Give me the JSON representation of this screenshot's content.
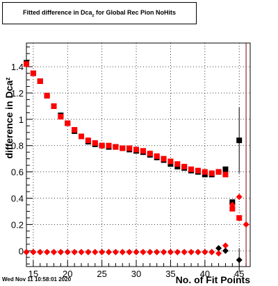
{
  "chart_data": {
    "type": "scatter",
    "title": "Fitted difference in Dca",
    "title_sub": "z",
    "title_rest": " for Global Rec Pion NoHits",
    "ylabel": "difference in Dca",
    "ylabel_sub": "z",
    "xlabel": "No. of Fit Points",
    "xlim": [
      14,
      46.6
    ],
    "ylim": [
      -0.12,
      1.58
    ],
    "x_ticks": [
      15,
      20,
      25,
      30,
      35,
      40,
      45
    ],
    "y_ticks": [
      0,
      0.2,
      0.4,
      0.6,
      0.8,
      1,
      1.2,
      1.4
    ],
    "y_tick_labels": [
      "0",
      "0.2",
      "0.4",
      "0.6",
      "0.8",
      "1",
      "1.2",
      "1.4"
    ],
    "grid": true,
    "colors": {
      "series_a": "#000000",
      "series_b": "#ff0000",
      "frame": "#000000",
      "vline": "#800000"
    },
    "series": [
      {
        "marker": "square",
        "color": "#000000",
        "points": [
          [
            14,
            1.43
          ],
          [
            15,
            1.35
          ],
          [
            16,
            1.29
          ],
          [
            17,
            1.18
          ],
          [
            18,
            1.1
          ],
          [
            19,
            1.03
          ],
          [
            20,
            0.97
          ],
          [
            21,
            0.91
          ],
          [
            22,
            0.87
          ],
          [
            23,
            0.83
          ],
          [
            24,
            0.81
          ],
          [
            25,
            0.8
          ],
          [
            26,
            0.79
          ],
          [
            27,
            0.79
          ],
          [
            28,
            0.78
          ],
          [
            29,
            0.77
          ],
          [
            30,
            0.76
          ],
          [
            31,
            0.75
          ],
          [
            32,
            0.73
          ],
          [
            33,
            0.71
          ],
          [
            34,
            0.69
          ],
          [
            35,
            0.66
          ],
          [
            36,
            0.64
          ],
          [
            37,
            0.63
          ],
          [
            38,
            0.61
          ],
          [
            39,
            0.6
          ],
          [
            40,
            0.58
          ],
          [
            41,
            0.58
          ],
          [
            42,
            0.6
          ],
          [
            43,
            0.62
          ],
          [
            44,
            0.37
          ],
          [
            45,
            0.84
          ]
        ],
        "errors": [
          [
            45,
            0.25
          ]
        ]
      },
      {
        "marker": "square",
        "color": "#ff0000",
        "points": [
          [
            14,
            1.42
          ],
          [
            15,
            1.35
          ],
          [
            16,
            1.29
          ],
          [
            17,
            1.18
          ],
          [
            18,
            1.1
          ],
          [
            19,
            1.02
          ],
          [
            20,
            0.97
          ],
          [
            21,
            0.92
          ],
          [
            22,
            0.87
          ],
          [
            23,
            0.84
          ],
          [
            24,
            0.82
          ],
          [
            25,
            0.8
          ],
          [
            26,
            0.8
          ],
          [
            27,
            0.79
          ],
          [
            28,
            0.78
          ],
          [
            29,
            0.78
          ],
          [
            30,
            0.77
          ],
          [
            31,
            0.76
          ],
          [
            32,
            0.74
          ],
          [
            33,
            0.72
          ],
          [
            34,
            0.7
          ],
          [
            35,
            0.68
          ],
          [
            36,
            0.66
          ],
          [
            37,
            0.64
          ],
          [
            38,
            0.62
          ],
          [
            39,
            0.61
          ],
          [
            40,
            0.6
          ],
          [
            41,
            0.59
          ],
          [
            42,
            0.6
          ],
          [
            43,
            0.58
          ],
          [
            44,
            0.32
          ],
          [
            45,
            0.25
          ]
        ],
        "errors": []
      },
      {
        "marker": "diamond",
        "color": "#000000",
        "points": [
          [
            14,
            -0.01
          ],
          [
            15,
            -0.01
          ],
          [
            16,
            -0.01
          ],
          [
            17,
            -0.01
          ],
          [
            18,
            -0.01
          ],
          [
            19,
            -0.01
          ],
          [
            20,
            -0.01
          ],
          [
            21,
            -0.01
          ],
          [
            22,
            -0.01
          ],
          [
            23,
            -0.01
          ],
          [
            24,
            -0.01
          ],
          [
            25,
            -0.01
          ],
          [
            26,
            -0.01
          ],
          [
            27,
            -0.01
          ],
          [
            28,
            -0.01
          ],
          [
            29,
            -0.01
          ],
          [
            30,
            -0.01
          ],
          [
            31,
            -0.01
          ],
          [
            32,
            -0.01
          ],
          [
            33,
            -0.01
          ],
          [
            34,
            -0.01
          ],
          [
            35,
            -0.01
          ],
          [
            36,
            -0.01
          ],
          [
            37,
            -0.01
          ],
          [
            38,
            -0.01
          ],
          [
            39,
            -0.01
          ],
          [
            40,
            -0.01
          ],
          [
            41,
            -0.01
          ],
          [
            42,
            0.02
          ],
          [
            43,
            0.0
          ],
          [
            44,
            0.36
          ],
          [
            45,
            -0.07
          ]
        ],
        "errors": [
          [
            45,
            0.09
          ]
        ]
      },
      {
        "marker": "diamond",
        "color": "#ff0000",
        "points": [
          [
            14,
            -0.01
          ],
          [
            15,
            -0.01
          ],
          [
            16,
            -0.01
          ],
          [
            17,
            -0.01
          ],
          [
            18,
            -0.01
          ],
          [
            19,
            -0.01
          ],
          [
            20,
            -0.01
          ],
          [
            21,
            -0.01
          ],
          [
            22,
            -0.01
          ],
          [
            23,
            -0.01
          ],
          [
            24,
            -0.01
          ],
          [
            25,
            -0.01
          ],
          [
            26,
            -0.01
          ],
          [
            27,
            -0.01
          ],
          [
            28,
            -0.01
          ],
          [
            29,
            -0.01
          ],
          [
            30,
            -0.01
          ],
          [
            31,
            -0.01
          ],
          [
            32,
            -0.01
          ],
          [
            33,
            -0.01
          ],
          [
            34,
            -0.01
          ],
          [
            35,
            -0.01
          ],
          [
            36,
            -0.01
          ],
          [
            37,
            -0.01
          ],
          [
            38,
            -0.01
          ],
          [
            39,
            -0.01
          ],
          [
            40,
            -0.01
          ],
          [
            41,
            -0.01
          ],
          [
            42,
            -0.02
          ],
          [
            43,
            0.04
          ],
          [
            44,
            0.35
          ],
          [
            45,
            0.41
          ],
          [
            46,
            0.2
          ]
        ],
        "errors": []
      }
    ],
    "vline_x": 46
  },
  "footer": {
    "timestamp": "Wed Nov 11 10:58:01 2020"
  }
}
